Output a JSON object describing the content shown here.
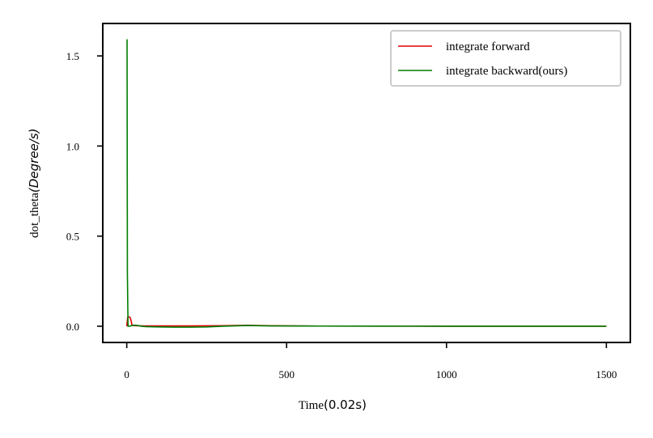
{
  "chart_data": {
    "type": "line",
    "xlabel": {
      "text": "Time",
      "unit": "(0.02s)"
    },
    "ylabel": {
      "text": "dot_theta",
      "unit": "(Degree/s)"
    },
    "xlim": [
      -75,
      1575
    ],
    "ylim": [
      -0.09,
      1.68
    ],
    "xticks": [
      0,
      500,
      1000,
      1500
    ],
    "xtick_labels": [
      "0",
      "500",
      "1000",
      "1500"
    ],
    "yticks": [
      0.0,
      0.5,
      1.0,
      1.5
    ],
    "ytick_labels": [
      "0.0",
      "0.5",
      "1.0",
      "1.5"
    ],
    "grid": false,
    "legend_position": "top-right",
    "series": [
      {
        "name": "integrate forward",
        "color": "#e00000",
        "x": [
          0,
          3,
          6,
          10,
          13,
          16,
          20,
          30,
          50,
          100,
          200,
          300,
          375,
          450,
          600,
          800,
          1000,
          1200,
          1500
        ],
        "y": [
          0.0,
          0.05,
          0.052,
          0.05,
          0.035,
          0.01,
          0.004,
          0.003,
          0.002,
          0.002,
          0.002,
          0.003,
          0.005,
          0.003,
          0.001,
          0.0005,
          0.0003,
          0.0002,
          0.0001
        ]
      },
      {
        "name": "integrate backward(ours)",
        "color": "#007f00",
        "x": [
          0,
          1,
          2,
          4,
          8,
          14,
          20,
          28,
          35,
          45,
          60,
          100,
          150,
          200,
          250,
          300,
          375,
          450,
          600,
          800,
          1000,
          1200,
          1500
        ],
        "y": [
          1.59,
          1.59,
          0.3,
          0.0,
          0.0,
          0.003,
          0.005,
          0.006,
          0.004,
          0.0,
          -0.002,
          -0.004,
          -0.005,
          -0.005,
          -0.004,
          0.0,
          0.004,
          0.002,
          0.001,
          0.0005,
          0.0003,
          0.0002,
          0.0001
        ]
      }
    ]
  }
}
